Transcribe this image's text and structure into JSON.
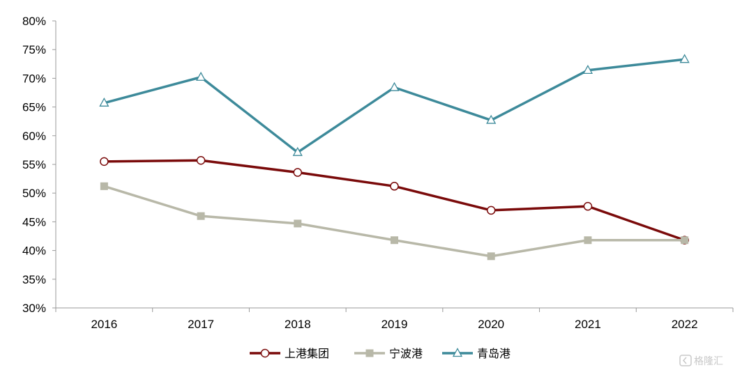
{
  "chart_data": {
    "type": "line",
    "title": "",
    "xlabel": "",
    "ylabel": "",
    "categories": [
      "2016",
      "2017",
      "2018",
      "2019",
      "2020",
      "2021",
      "2022"
    ],
    "y_ticks": [
      "30%",
      "35%",
      "40%",
      "45%",
      "50%",
      "55%",
      "60%",
      "65%",
      "70%",
      "75%",
      "80%"
    ],
    "ylim": [
      30,
      80
    ],
    "grid": false,
    "legend_position": "bottom",
    "series": [
      {
        "name": "上港集团",
        "values": [
          55.5,
          55.7,
          53.6,
          51.2,
          47.0,
          47.7,
          41.8
        ],
        "color": "#7a0a0a",
        "marker": "circle-open"
      },
      {
        "name": "宁波港",
        "values": [
          51.2,
          46.0,
          44.7,
          41.8,
          39.0,
          41.8,
          41.8
        ],
        "color": "#b8b8a8",
        "marker": "square-filled"
      },
      {
        "name": "青岛港",
        "values": [
          65.7,
          70.2,
          57.1,
          68.4,
          62.7,
          71.4,
          73.3
        ],
        "color": "#3d8a9a",
        "marker": "triangle-open"
      }
    ]
  },
  "watermark": {
    "text": "格隆汇",
    "icon": "glh-logo-icon"
  }
}
